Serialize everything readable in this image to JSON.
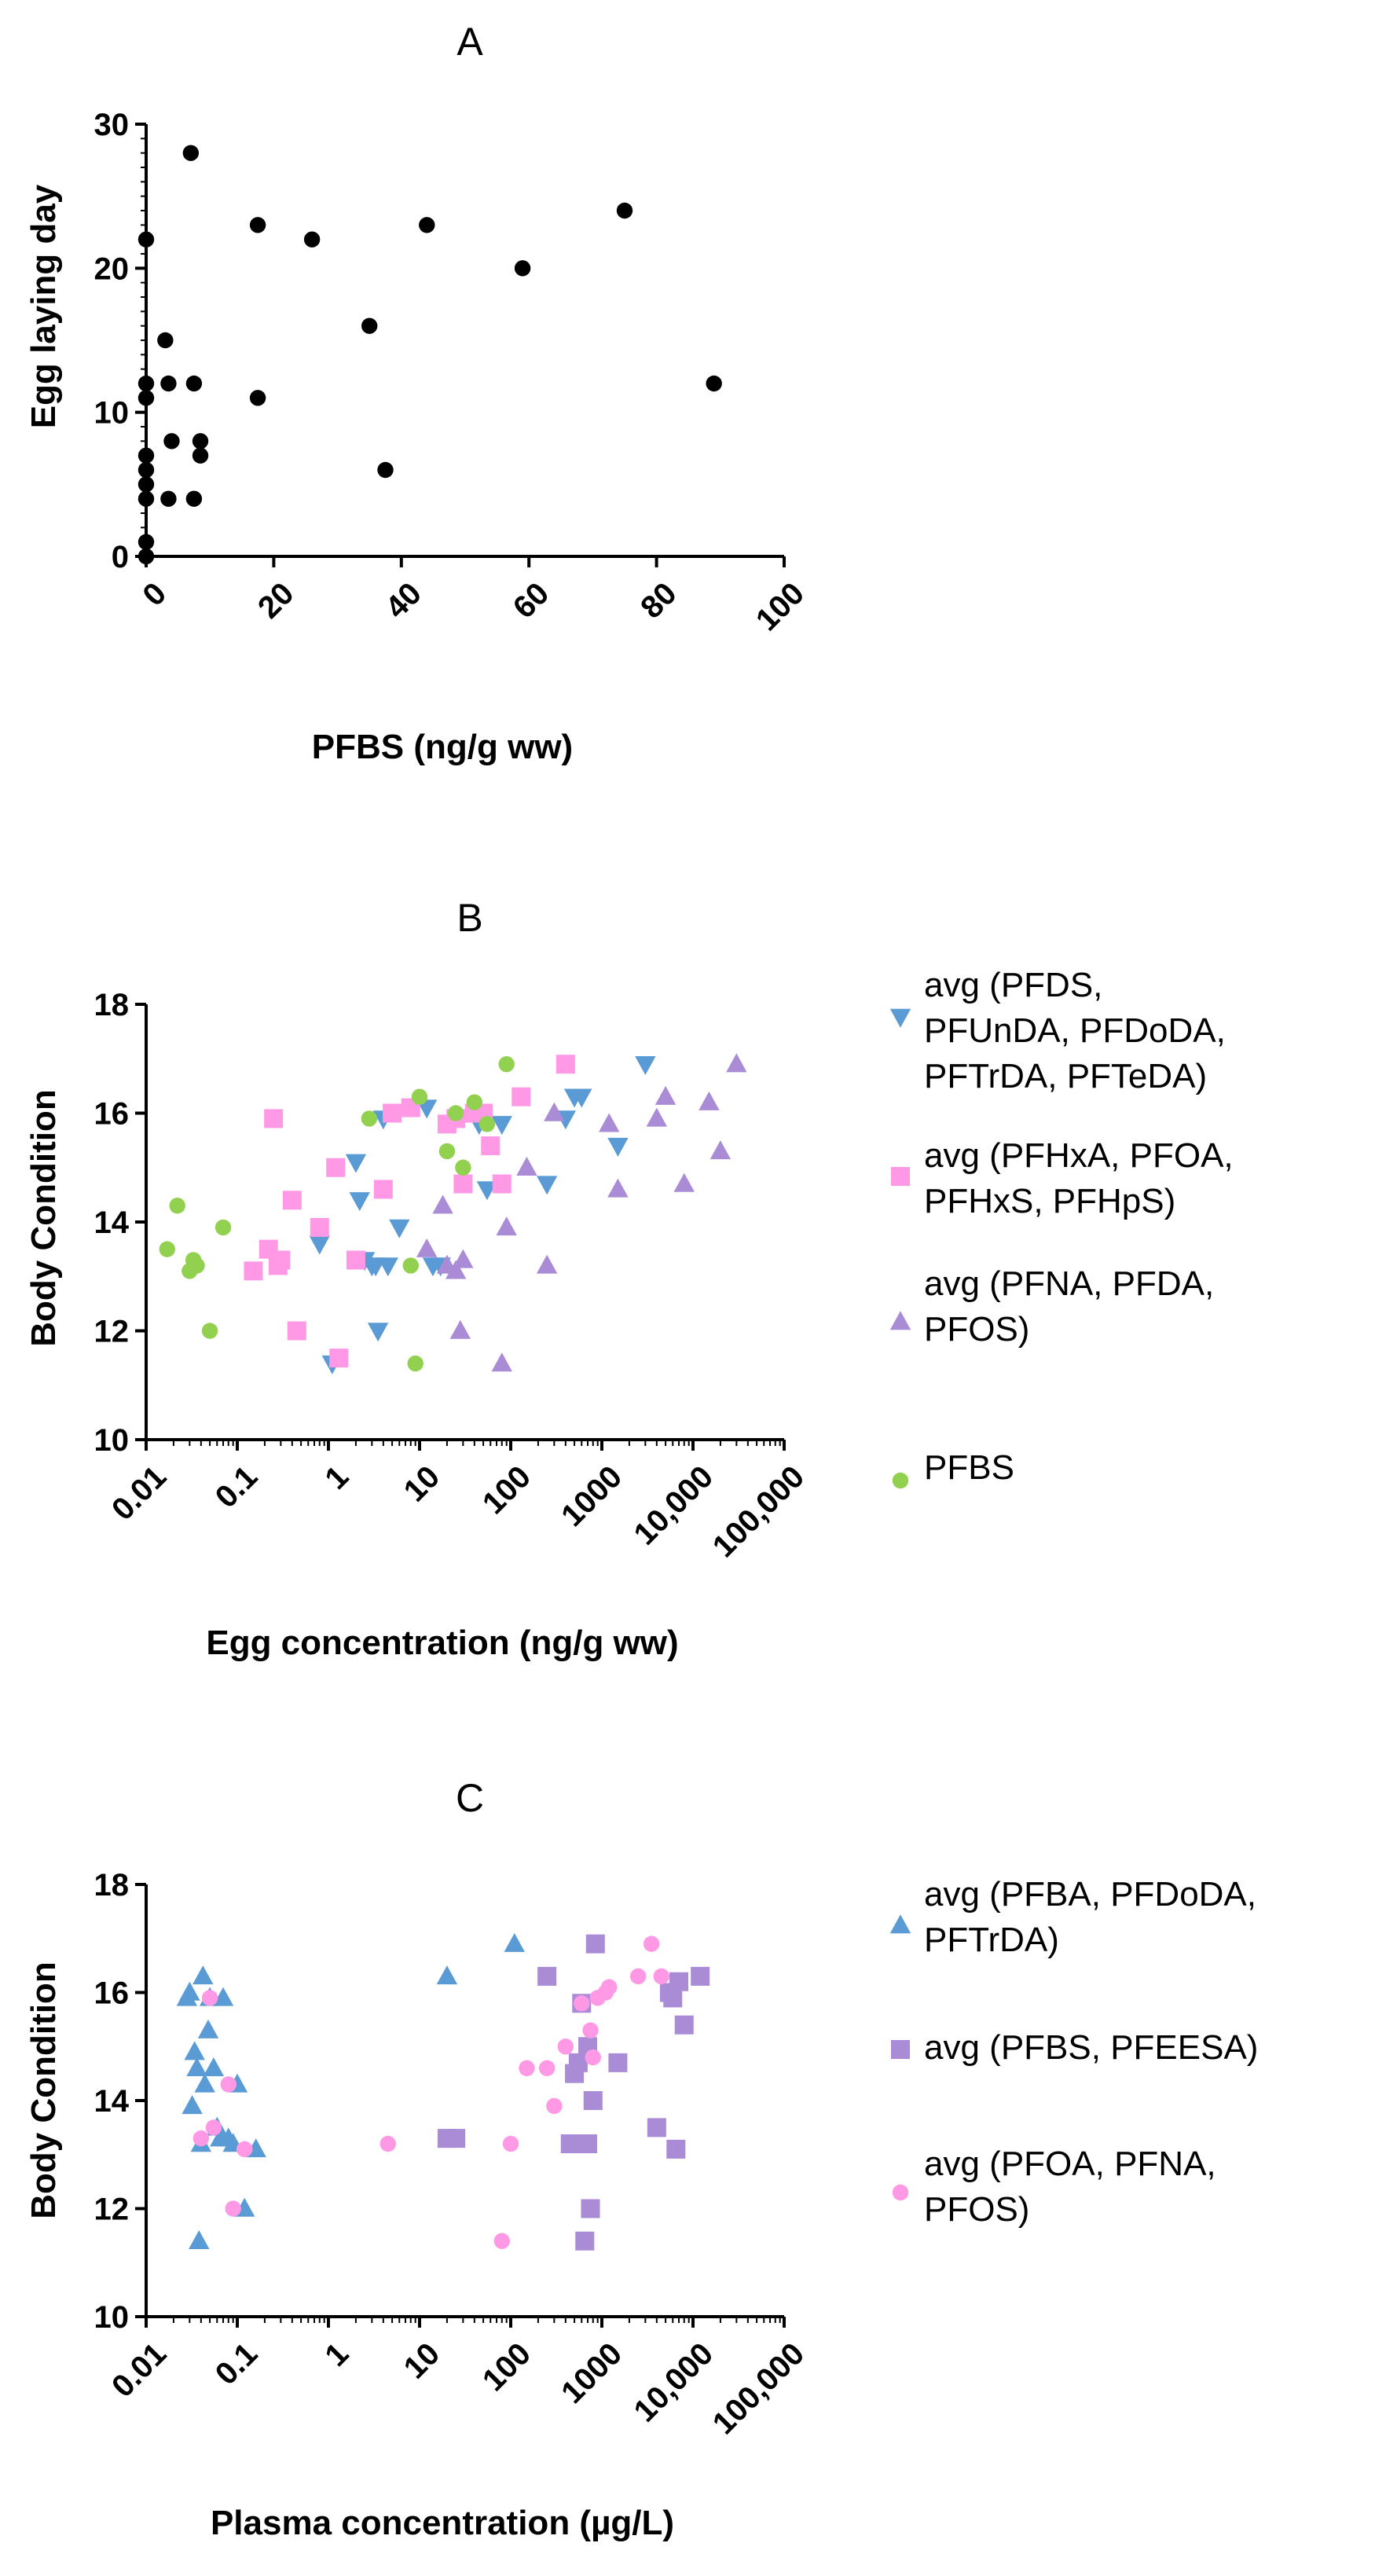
{
  "chart_data": [
    {
      "id": "A",
      "type": "scatter",
      "title": "A",
      "xlabel": "PFBS (ng/g ww)",
      "ylabel": "Egg laying day",
      "xscale": "linear",
      "xlim": [
        0,
        100
      ],
      "ylim": [
        0,
        30
      ],
      "x_ticks": [
        0,
        20,
        40,
        60,
        80,
        100
      ],
      "x_tick_labels": [
        "0",
        "20",
        "40",
        "60",
        "80",
        "100"
      ],
      "y_ticks": [
        0,
        10,
        20,
        30
      ],
      "y_tick_labels": [
        "0",
        "10",
        "20",
        "30"
      ],
      "series": [
        {
          "name": "Egg laying day",
          "marker": "circle",
          "color": "#000000",
          "points": [
            [
              0,
              22
            ],
            [
              0,
              12
            ],
            [
              0,
              11
            ],
            [
              0,
              7
            ],
            [
              0,
              6
            ],
            [
              0,
              5
            ],
            [
              0,
              4
            ],
            [
              0,
              1
            ],
            [
              0,
              0
            ],
            [
              3,
              15
            ],
            [
              3.5,
              12
            ],
            [
              3.5,
              4
            ],
            [
              4,
              8
            ],
            [
              7,
              28
            ],
            [
              7.5,
              12
            ],
            [
              7.5,
              4
            ],
            [
              8.5,
              8
            ],
            [
              8.5,
              7
            ],
            [
              17.5,
              23
            ],
            [
              17.5,
              11
            ],
            [
              26,
              22
            ],
            [
              35,
              16
            ],
            [
              37.5,
              6
            ],
            [
              44,
              23
            ],
            [
              59,
              20
            ],
            [
              75,
              24
            ],
            [
              89,
              12
            ]
          ]
        }
      ]
    },
    {
      "id": "B",
      "type": "scatter",
      "title": "B",
      "xlabel": "Egg concentration (ng/g ww)",
      "ylabel": "Body  Condition",
      "xscale": "log",
      "xlim": [
        0.01,
        100000
      ],
      "ylim": [
        10,
        18
      ],
      "x_ticks": [
        0.01,
        0.1,
        1,
        10,
        100,
        1000,
        10000,
        100000
      ],
      "x_tick_labels": [
        "0.01",
        "0.1",
        "1",
        "10",
        "100",
        "1000",
        "10,000",
        "100,000"
      ],
      "y_ticks": [
        10,
        12,
        14,
        16,
        18
      ],
      "y_tick_labels": [
        "10",
        "12",
        "14",
        "16",
        "18"
      ],
      "series": [
        {
          "name": "avg  (PFDS,\nPFUnDA, PFDoDA,\nPFTrDA, PFTeDA)",
          "marker": "triangle-down",
          "color": "#5B9BD5",
          "points": [
            [
              1.1,
              11.4
            ],
            [
              0.8,
              13.6
            ],
            [
              2,
              15.1
            ],
            [
              2.2,
              14.4
            ],
            [
              2.5,
              13.3
            ],
            [
              3,
              13.2
            ],
            [
              3.3,
              13.2
            ],
            [
              3.5,
              12
            ],
            [
              4,
              15.9
            ],
            [
              4.5,
              13.2
            ],
            [
              6,
              13.9
            ],
            [
              12,
              16.1
            ],
            [
              14,
              13.2
            ],
            [
              17,
              13.2
            ],
            [
              45,
              15.8
            ],
            [
              55,
              14.6
            ],
            [
              80,
              15.8
            ],
            [
              250,
              14.7
            ],
            [
              400,
              15.9
            ],
            [
              500,
              16.3
            ],
            [
              600,
              16.3
            ],
            [
              1500,
              15.4
            ],
            [
              3000,
              16.9
            ]
          ]
        },
        {
          "name": "avg (PFHxA, PFOA,\nPFHxS, PFHpS)",
          "marker": "square",
          "color": "#FF99E6",
          "points": [
            [
              0.15,
              13.1
            ],
            [
              0.22,
              13.5
            ],
            [
              0.25,
              15.9
            ],
            [
              0.28,
              13.2
            ],
            [
              0.3,
              13.3
            ],
            [
              0.4,
              14.4
            ],
            [
              0.45,
              12
            ],
            [
              0.8,
              13.9
            ],
            [
              1.2,
              15
            ],
            [
              1.3,
              11.5
            ],
            [
              2,
              13.3
            ],
            [
              4,
              14.6
            ],
            [
              5,
              16
            ],
            [
              8,
              16.1
            ],
            [
              20,
              15.8
            ],
            [
              25,
              15.9
            ],
            [
              30,
              14.7
            ],
            [
              40,
              16
            ],
            [
              50,
              16
            ],
            [
              60,
              15.4
            ],
            [
              80,
              14.7
            ],
            [
              130,
              16.3
            ],
            [
              400,
              16.9
            ]
          ]
        },
        {
          "name": "avg  (PFNA, PFDA,\nPFOS)",
          "marker": "triangle-up",
          "color": "#A98BD6",
          "points": [
            [
              12,
              13.5
            ],
            [
              18,
              14.3
            ],
            [
              20,
              13.2
            ],
            [
              25,
              13.1
            ],
            [
              28,
              12
            ],
            [
              30,
              13.3
            ],
            [
              80,
              11.4
            ],
            [
              90,
              13.9
            ],
            [
              150,
              15
            ],
            [
              250,
              13.2
            ],
            [
              300,
              16
            ],
            [
              1200,
              15.8
            ],
            [
              1500,
              14.6
            ],
            [
              4000,
              15.9
            ],
            [
              5000,
              16.3
            ],
            [
              8000,
              14.7
            ],
            [
              15000,
              16.2
            ],
            [
              20000,
              15.3
            ],
            [
              30000,
              16.9
            ]
          ]
        },
        {
          "name": "PFBS",
          "marker": "circle",
          "color": "#92D050",
          "points": [
            [
              0.017,
              13.5
            ],
            [
              0.022,
              14.3
            ],
            [
              0.03,
              13.1
            ],
            [
              0.033,
              13.3
            ],
            [
              0.036,
              13.2
            ],
            [
              0.05,
              12
            ],
            [
              0.07,
              13.9
            ],
            [
              2.8,
              15.9
            ],
            [
              8,
              13.2
            ],
            [
              9,
              11.4
            ],
            [
              10,
              16.3
            ],
            [
              20,
              15.3
            ],
            [
              25,
              16
            ],
            [
              30,
              15
            ],
            [
              40,
              16.2
            ],
            [
              55,
              15.8
            ],
            [
              90,
              16.9
            ]
          ]
        }
      ]
    },
    {
      "id": "C",
      "type": "scatter",
      "title": "C",
      "xlabel": "Plasma concentration  (µg/L)",
      "ylabel": "Body  Condition",
      "xscale": "log",
      "xlim": [
        0.01,
        100000
      ],
      "ylim": [
        10,
        18
      ],
      "x_ticks": [
        0.01,
        0.1,
        1,
        10,
        100,
        1000,
        10000,
        100000
      ],
      "x_tick_labels": [
        "0.01",
        "0.1",
        "1",
        "10",
        "100",
        "1000",
        "10,000",
        "100,000"
      ],
      "y_ticks": [
        10,
        12,
        14,
        16,
        18
      ],
      "y_tick_labels": [
        "10",
        "12",
        "14",
        "16",
        "18"
      ],
      "series": [
        {
          "name": "avg (PFBA, PFDoDA,\nPFTrDA)",
          "marker": "triangle-up",
          "color": "#5B9BD5",
          "points": [
            [
              0.028,
              15.9
            ],
            [
              0.03,
              16
            ],
            [
              0.032,
              13.9
            ],
            [
              0.034,
              14.9
            ],
            [
              0.036,
              14.6
            ],
            [
              0.038,
              11.4
            ],
            [
              0.04,
              13.2
            ],
            [
              0.042,
              16.3
            ],
            [
              0.044,
              14.3
            ],
            [
              0.048,
              15.3
            ],
            [
              0.05,
              15.9
            ],
            [
              0.055,
              14.6
            ],
            [
              0.06,
              13.5
            ],
            [
              0.065,
              13.3
            ],
            [
              0.07,
              15.9
            ],
            [
              0.08,
              13.3
            ],
            [
              0.09,
              13.2
            ],
            [
              0.1,
              14.3
            ],
            [
              0.12,
              12
            ],
            [
              0.16,
              13.1
            ],
            [
              20,
              16.3
            ],
            [
              110,
              16.9
            ]
          ]
        },
        {
          "name": "avg (PFBS, PFEESA)",
          "marker": "square",
          "color": "#A98BD6",
          "points": [
            [
              20,
              13.3
            ],
            [
              25,
              13.3
            ],
            [
              250,
              16.3
            ],
            [
              450,
              13.2
            ],
            [
              500,
              14.5
            ],
            [
              550,
              14.7
            ],
            [
              600,
              15.8
            ],
            [
              650,
              11.4
            ],
            [
              700,
              13.2
            ],
            [
              700,
              15
            ],
            [
              750,
              12
            ],
            [
              800,
              14
            ],
            [
              850,
              16.9
            ],
            [
              1500,
              14.7
            ],
            [
              4000,
              13.5
            ],
            [
              5500,
              16
            ],
            [
              6000,
              15.9
            ],
            [
              6500,
              13.1
            ],
            [
              7000,
              16.2
            ],
            [
              8000,
              15.4
            ],
            [
              12000,
              16.3
            ]
          ]
        },
        {
          "name": "avg (PFOA, PFNA,\nPFOS)",
          "marker": "circle",
          "color": "#FF99E6",
          "points": [
            [
              0.04,
              13.3
            ],
            [
              0.05,
              15.9
            ],
            [
              0.055,
              13.5
            ],
            [
              0.08,
              14.3
            ],
            [
              0.09,
              12
            ],
            [
              0.12,
              13.1
            ],
            [
              4.5,
              13.2
            ],
            [
              80,
              11.4
            ],
            [
              100,
              13.2
            ],
            [
              150,
              14.6
            ],
            [
              250,
              14.6
            ],
            [
              300,
              13.9
            ],
            [
              400,
              15
            ],
            [
              600,
              15.8
            ],
            [
              750,
              15.3
            ],
            [
              800,
              14.8
            ],
            [
              900,
              15.9
            ],
            [
              1100,
              16
            ],
            [
              1200,
              16.1
            ],
            [
              2500,
              16.3
            ],
            [
              3500,
              16.9
            ],
            [
              4500,
              16.3
            ]
          ]
        }
      ]
    }
  ]
}
